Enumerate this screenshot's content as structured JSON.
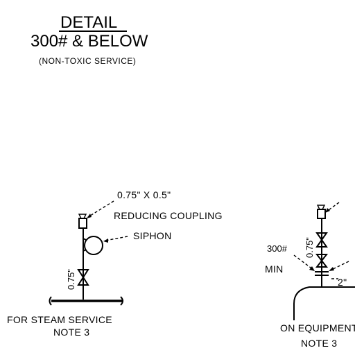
{
  "title": {
    "line1": "DETAIL",
    "line2": "300# & BELOW",
    "line3": "(NON-TOXIC SERVICE)"
  },
  "left_detail": {
    "coupling_label_1": "0.75\" X 0.5\"",
    "coupling_label_2": "REDUCING COUPLING",
    "siphon_label": "SIPHON",
    "pipe_size_label": "0.75\"",
    "caption_1": "FOR STEAM SERVICE",
    "caption_2": "NOTE 3"
  },
  "right_detail": {
    "pipe_size_label": "0.75\"",
    "rating_label_1": "300#",
    "rating_label_2": "MIN",
    "nozzle_label": "2\"",
    "caption_1": "ON EQUIPMENT",
    "caption_2": "NOTE 3"
  }
}
